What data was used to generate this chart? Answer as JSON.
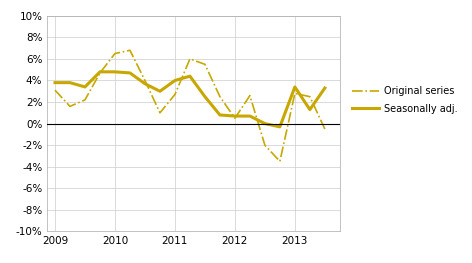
{
  "color": "#C8A800",
  "xlim_start": 2008.87,
  "xlim_end": 2013.75,
  "ylim": [
    -0.1,
    0.1
  ],
  "yticks": [
    -0.1,
    -0.08,
    -0.06,
    -0.04,
    -0.02,
    0.0,
    0.02,
    0.04,
    0.06,
    0.08,
    0.1
  ],
  "xticks": [
    2009,
    2010,
    2011,
    2012,
    2013
  ],
  "original_x": [
    2009.0,
    2009.25,
    2009.5,
    2009.75,
    2010.0,
    2010.25,
    2010.5,
    2010.75,
    2011.0,
    2011.25,
    2011.5,
    2011.75,
    2012.0,
    2012.25,
    2012.5,
    2012.75,
    2013.0,
    2013.25,
    2013.5
  ],
  "original_y": [
    0.031,
    0.016,
    0.022,
    0.047,
    0.065,
    0.068,
    0.04,
    0.01,
    0.027,
    0.06,
    0.055,
    0.025,
    0.005,
    0.026,
    -0.02,
    -0.035,
    0.028,
    0.025,
    -0.005
  ],
  "seasonal_x": [
    2009.0,
    2009.25,
    2009.5,
    2009.75,
    2010.0,
    2010.25,
    2010.5,
    2010.75,
    2011.0,
    2011.25,
    2011.5,
    2011.75,
    2012.0,
    2012.25,
    2012.5,
    2012.75,
    2013.0,
    2013.25,
    2013.5
  ],
  "seasonal_y": [
    0.038,
    0.038,
    0.034,
    0.048,
    0.048,
    0.047,
    0.037,
    0.03,
    0.04,
    0.044,
    0.025,
    0.008,
    0.007,
    0.007,
    0.0,
    -0.003,
    0.034,
    0.013,
    0.033
  ],
  "legend_original": "Original series",
  "legend_seasonal": "Seasonally adj.",
  "background_color": "#ffffff",
  "grid_color": "#cccccc",
  "figsize": [
    4.72,
    2.63
  ],
  "dpi": 100
}
